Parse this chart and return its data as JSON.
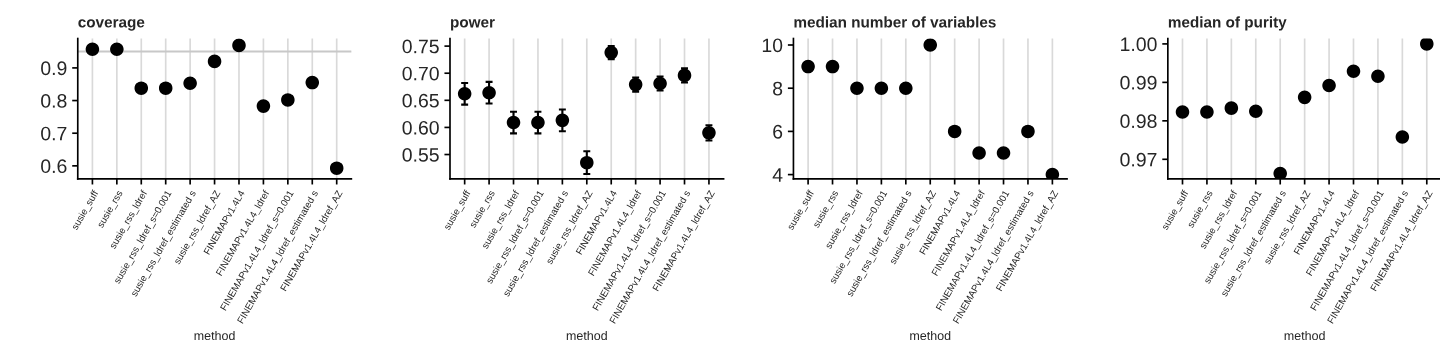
{
  "chart_data": [
    {
      "type": "scatter",
      "title": "coverage",
      "xlabel": "method",
      "categories": [
        "susie_suff",
        "susie_rss",
        "susie_rss_ldref",
        "susie_rss_ldref_s=0.001",
        "susie_rss_ldref_estimated s",
        "susie_rss_ldref_AZ",
        "FINEMAPv1.4L4",
        "FINEMAPv1.4L4_ldref",
        "FINEMAPv1.4L4_ldref_s=0.001",
        "FINEMAPv1.4L4_ldref_estimated s",
        "FINEMAPv1.4L4_ldref_AZ"
      ],
      "series": [
        {
          "color": "#000000",
          "values": [
            0.957,
            0.957,
            0.838,
            0.838,
            0.853,
            0.92,
            0.969,
            0.783,
            0.802,
            0.855,
            0.593
          ]
        }
      ],
      "ylim": [
        0.56,
        0.99
      ],
      "yticks": [
        0.6,
        0.7,
        0.8,
        0.9
      ],
      "ref_lines": [
        {
          "axis": "y",
          "value": 0.95,
          "color": "#c8c8c8"
        }
      ],
      "grid": "x",
      "marker": "circle"
    },
    {
      "type": "scatter",
      "title": "power",
      "xlabel": "method",
      "categories": [
        "susie_suff",
        "susie_rss",
        "susie_rss_ldref",
        "susie_rss_ldref_s=0.001",
        "susie_rss_ldref_estimated s",
        "susie_rss_ldref_AZ",
        "FINEMAPv1.4L4",
        "FINEMAPv1.4L4_ldref",
        "FINEMAPv1.4L4_ldref_s=0.001",
        "FINEMAPv1.4L4_ldref_estimated s",
        "FINEMAPv1.4L4_ldref_AZ"
      ],
      "series": [
        {
          "color": "#000000",
          "values": [
            0.662,
            0.664,
            0.609,
            0.609,
            0.613,
            0.535,
            0.738,
            0.679,
            0.681,
            0.696,
            0.59
          ],
          "errors": [
            0.02,
            0.02,
            0.02,
            0.02,
            0.02,
            0.021,
            0.012,
            0.013,
            0.013,
            0.013,
            0.014
          ]
        }
      ],
      "ylim": [
        0.505,
        0.764
      ],
      "yticks": [
        {
          "value": 0.55,
          "label": "0.55"
        },
        {
          "value": 0.6,
          "label": "0.60"
        },
        {
          "value": 0.65,
          "label": "0.65"
        },
        {
          "value": 0.7,
          "label": "0.70"
        },
        {
          "value": 0.75,
          "label": "0.75"
        }
      ],
      "grid": "x",
      "marker": "circle"
    },
    {
      "type": "scatter",
      "title": "median number of variables",
      "xlabel": "method",
      "categories": [
        "susie_suff",
        "susie_rss",
        "susie_rss_ldref",
        "susie_rss_ldref_s=0.001",
        "susie_rss_ldref_estimated s",
        "susie_rss_ldref_AZ",
        "FINEMAPv1.4L4",
        "FINEMAPv1.4L4_ldref",
        "FINEMAPv1.4L4_ldref_s=0.001",
        "FINEMAPv1.4L4_ldref_estimated s",
        "FINEMAPv1.4L4_ldref_AZ"
      ],
      "series": [
        {
          "color": "#000000",
          "values": [
            9,
            9,
            8,
            8,
            8,
            10,
            6,
            5,
            5,
            6,
            4
          ]
        }
      ],
      "ylim": [
        3.8,
        10.3
      ],
      "yticks": [
        4,
        6,
        8,
        10
      ],
      "grid": "x",
      "marker": "circle"
    },
    {
      "type": "scatter",
      "title": "median of purity",
      "xlabel": "method",
      "categories": [
        "susie_suff",
        "susie_rss",
        "susie_rss_ldref",
        "susie_rss_ldref_s=0.001",
        "susie_rss_ldref_estimated s",
        "susie_rss_ldref_AZ",
        "FINEMAPv1.4L4",
        "FINEMAPv1.4L4_ldref",
        "FINEMAPv1.4L4_ldref_s=0.001",
        "FINEMAPv1.4L4_ldref_estimated s",
        "FINEMAPv1.4L4_ldref_AZ"
      ],
      "series": [
        {
          "color": "#000000",
          "values": [
            0.9823,
            0.9823,
            0.9833,
            0.9825,
            0.9663,
            0.9861,
            0.9892,
            0.9929,
            0.9916,
            0.9758,
            1.0
          ]
        }
      ],
      "ylim": [
        0.9649,
        1.0014
      ],
      "yticks": [
        0.97,
        0.98,
        0.99,
        {
          "value": 1.0,
          "label": "1.00"
        }
      ],
      "grid": "x",
      "marker": "circle"
    }
  ]
}
